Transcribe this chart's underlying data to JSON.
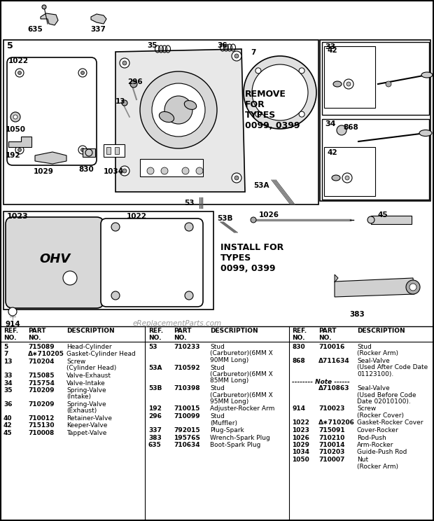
{
  "bg_color": "#ffffff",
  "watermark": "eReplacementParts.com",
  "col1_parts": [
    [
      "5",
      "715089",
      "Head-Cylinder"
    ],
    [
      "7",
      "Δ∗710205",
      "Gasket-Cylinder Head"
    ],
    [
      "13",
      "710204",
      "Screw\n(Cylinder Head)"
    ],
    [
      "33",
      "715085",
      "Valve-Exhaust"
    ],
    [
      "34",
      "715754",
      "Valve-Intake"
    ],
    [
      "35",
      "710209",
      "Spring-Valve\n(Intake)"
    ],
    [
      "36",
      "710209",
      "Spring-Valve\n(Exhaust)"
    ],
    [
      "40",
      "710012",
      "Retainer-Valve"
    ],
    [
      "42",
      "715130",
      "Keeper-Valve"
    ],
    [
      "45",
      "710008",
      "Tappet-Valve"
    ]
  ],
  "col2_parts": [
    [
      "53",
      "710233",
      "Stud\n(Carburetor)(6MM X\n90MM Long)"
    ],
    [
      "53A",
      "710592",
      "Stud\n(Carburetor)(6MM X\n85MM Long)"
    ],
    [
      "53B",
      "710398",
      "Stud\n(Carburetor)(6MM X\n95MM Long)"
    ],
    [
      "192",
      "710015",
      "Adjuster-Rocker Arm"
    ],
    [
      "296",
      "710099",
      "Stud\n(Muffler)"
    ],
    [
      "337",
      "792015",
      "Plug-Spark"
    ],
    [
      "383",
      "19576S",
      "Wrench-Spark Plug"
    ],
    [
      "635",
      "710634",
      "Boot-Spark Plug"
    ]
  ],
  "col3_parts": [
    [
      "830",
      "710016",
      "Stud\n(Rocker Arm)"
    ],
    [
      "868",
      "Δ711634",
      "Seal-Valve\n(Used After Code Date\n01123100)."
    ],
    [
      "-------- Note ------",
      "",
      ""
    ],
    [
      "",
      "Δ710863",
      "Seal-Valve\n(Used Before Code\nDate 02010100)."
    ],
    [
      "914",
      "710023",
      "Screw\n(Rocker Cover)"
    ],
    [
      "1022",
      "Δ∗710206",
      "Gasket-Rocker Cover"
    ],
    [
      "1023",
      "715091",
      "Cover-Rocker"
    ],
    [
      "1026",
      "710210",
      "Rod-Push"
    ],
    [
      "1029",
      "710014",
      "Arm-Rocker"
    ],
    [
      "1034",
      "710203",
      "Guide-Push Rod"
    ],
    [
      "1050",
      "710007",
      "Nut\n(Rocker Arm)"
    ]
  ]
}
